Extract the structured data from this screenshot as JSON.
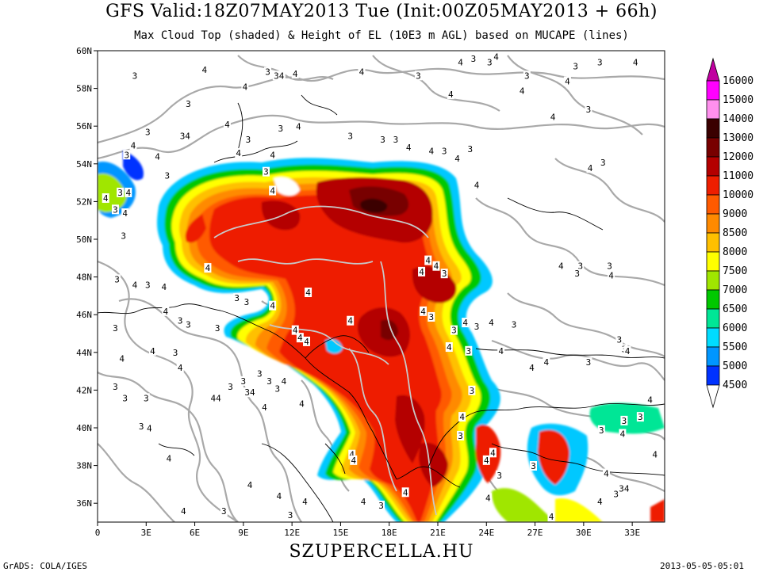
{
  "header": {
    "title": "GFS Valid:18Z07MAY2013 Tue (Init:00Z05MAY2013 + 66h)",
    "subtitle": "Max Cloud Top (shaded) & Height of EL (10E3 m AGL) based on MUCAPE (lines)"
  },
  "footer": {
    "site": "SZUPERCELLA.HU",
    "credit": "GrADS: COLA/IGES",
    "timestamp": "2013-05-05-05:01"
  },
  "axes": {
    "lat_labels": [
      "60N",
      "58N",
      "56N",
      "54N",
      "52N",
      "50N",
      "48N",
      "46N",
      "44N",
      "42N",
      "40N",
      "38N",
      "36N"
    ],
    "lon_labels": [
      "0",
      "3E",
      "6E",
      "9E",
      "12E",
      "15E",
      "18E",
      "21E",
      "24E",
      "27E",
      "30E",
      "33E"
    ]
  },
  "colorbar": {
    "levels": [
      {
        "label": "16000",
        "color": "#c000a0"
      },
      {
        "label": "15000",
        "color": "#ff00ff"
      },
      {
        "label": "14000",
        "color": "#ff90ee"
      },
      {
        "label": "13000",
        "color": "#3a0000"
      },
      {
        "label": "12000",
        "color": "#780000"
      },
      {
        "label": "11000",
        "color": "#b40000"
      },
      {
        "label": "10000",
        "color": "#ee1e00"
      },
      {
        "label": "9000",
        "color": "#ff5a00"
      },
      {
        "label": "8500",
        "color": "#ff8a00"
      },
      {
        "label": "8000",
        "color": "#ffc000"
      },
      {
        "label": "7500",
        "color": "#ffff00"
      },
      {
        "label": "7000",
        "color": "#a0e600"
      },
      {
        "label": "6500",
        "color": "#00c800"
      },
      {
        "label": "6000",
        "color": "#00e696"
      },
      {
        "label": "5500",
        "color": "#00dcff"
      },
      {
        "label": "5000",
        "color": "#0096ff"
      },
      {
        "label": "4500",
        "color": "#0032ff"
      }
    ],
    "bottom_color": "#ffffff"
  },
  "contour_labels": [
    {
      "text": "3",
      "lon": 2.3,
      "lat": 58.6
    },
    {
      "text": "4",
      "lon": 6.6,
      "lat": 58.9
    },
    {
      "text": "3",
      "lon": 10.5,
      "lat": 58.8
    },
    {
      "text": "34",
      "lon": 11.2,
      "lat": 58.6
    },
    {
      "text": "4",
      "lon": 12.2,
      "lat": 58.7
    },
    {
      "text": "4",
      "lon": 16.3,
      "lat": 58.8
    },
    {
      "text": "3",
      "lon": 19.8,
      "lat": 58.6
    },
    {
      "text": "4",
      "lon": 22.4,
      "lat": 59.3
    },
    {
      "text": "3",
      "lon": 23.2,
      "lat": 59.5
    },
    {
      "text": "3",
      "lon": 24.2,
      "lat": 59.3
    },
    {
      "text": "4",
      "lon": 24.6,
      "lat": 59.6
    },
    {
      "text": "3",
      "lon": 26.5,
      "lat": 58.6
    },
    {
      "text": "3",
      "lon": 29.5,
      "lat": 59.1
    },
    {
      "text": "3",
      "lon": 31.0,
      "lat": 59.3
    },
    {
      "text": "4",
      "lon": 33.2,
      "lat": 59.3
    },
    {
      "text": "4",
      "lon": 29.0,
      "lat": 58.3
    },
    {
      "text": "4",
      "lon": 26.2,
      "lat": 57.8
    },
    {
      "text": "4",
      "lon": 21.8,
      "lat": 57.6
    },
    {
      "text": "4",
      "lon": 9.1,
      "lat": 58.0
    },
    {
      "text": "3",
      "lon": 5.6,
      "lat": 57.1
    },
    {
      "text": "3",
      "lon": 3.1,
      "lat": 55.6
    },
    {
      "text": "34",
      "lon": 5.4,
      "lat": 55.4
    },
    {
      "text": "4",
      "lon": 8.0,
      "lat": 56.0
    },
    {
      "text": "3",
      "lon": 9.3,
      "lat": 55.2
    },
    {
      "text": "4",
      "lon": 2.2,
      "lat": 54.9
    },
    {
      "text": "3",
      "lon": 1.8,
      "lat": 54.4
    },
    {
      "text": "4",
      "lon": 3.7,
      "lat": 54.3
    },
    {
      "text": "4",
      "lon": 8.7,
      "lat": 54.5
    },
    {
      "text": "4",
      "lon": 10.8,
      "lat": 54.4
    },
    {
      "text": "3",
      "lon": 11.3,
      "lat": 55.8
    },
    {
      "text": "4",
      "lon": 12.4,
      "lat": 55.9
    },
    {
      "text": "3",
      "lon": 15.6,
      "lat": 55.4
    },
    {
      "text": "3",
      "lon": 17.6,
      "lat": 55.2
    },
    {
      "text": "3",
      "lon": 18.4,
      "lat": 55.2
    },
    {
      "text": "4",
      "lon": 19.2,
      "lat": 54.8
    },
    {
      "text": "4",
      "lon": 20.6,
      "lat": 54.6
    },
    {
      "text": "3",
      "lon": 21.4,
      "lat": 54.6
    },
    {
      "text": "3",
      "lon": 23.0,
      "lat": 54.7
    },
    {
      "text": "4",
      "lon": 22.2,
      "lat": 54.2
    },
    {
      "text": "4",
      "lon": 28.1,
      "lat": 56.4
    },
    {
      "text": "3",
      "lon": 30.3,
      "lat": 56.8
    },
    {
      "text": "4",
      "lon": 30.4,
      "lat": 53.7
    },
    {
      "text": "3",
      "lon": 31.2,
      "lat": 54.0
    },
    {
      "text": "3",
      "lon": 4.3,
      "lat": 53.3
    },
    {
      "text": "3",
      "lon": 10.4,
      "lat": 53.5
    },
    {
      "text": "4",
      "lon": 0.5,
      "lat": 52.1
    },
    {
      "text": "3",
      "lon": 1.4,
      "lat": 52.4
    },
    {
      "text": "4",
      "lon": 1.9,
      "lat": 52.4
    },
    {
      "text": "3",
      "lon": 1.1,
      "lat": 51.5
    },
    {
      "text": "4",
      "lon": 1.7,
      "lat": 51.3
    },
    {
      "text": "4",
      "lon": 10.8,
      "lat": 52.5
    },
    {
      "text": "4",
      "lon": 23.4,
      "lat": 52.8
    },
    {
      "text": "3",
      "lon": 1.6,
      "lat": 50.1
    },
    {
      "text": "4",
      "lon": 6.8,
      "lat": 48.4
    },
    {
      "text": "3",
      "lon": 1.2,
      "lat": 47.8
    },
    {
      "text": "4",
      "lon": 2.3,
      "lat": 47.5
    },
    {
      "text": "3",
      "lon": 3.1,
      "lat": 47.5
    },
    {
      "text": "4",
      "lon": 4.1,
      "lat": 47.4
    },
    {
      "text": "3",
      "lon": 8.6,
      "lat": 46.8
    },
    {
      "text": "3",
      "lon": 9.2,
      "lat": 46.6
    },
    {
      "text": "4",
      "lon": 10.8,
      "lat": 46.4
    },
    {
      "text": "4",
      "lon": 13.0,
      "lat": 47.1
    },
    {
      "text": "4",
      "lon": 20.4,
      "lat": 48.8
    },
    {
      "text": "4",
      "lon": 20.9,
      "lat": 48.5
    },
    {
      "text": "3",
      "lon": 21.4,
      "lat": 48.1
    },
    {
      "text": "4",
      "lon": 20.0,
      "lat": 48.2
    },
    {
      "text": "4",
      "lon": 28.6,
      "lat": 48.5
    },
    {
      "text": "3",
      "lon": 29.8,
      "lat": 48.5
    },
    {
      "text": "3",
      "lon": 29.6,
      "lat": 48.1
    },
    {
      "text": "3",
      "lon": 31.6,
      "lat": 48.5
    },
    {
      "text": "4",
      "lon": 31.7,
      "lat": 48.0
    },
    {
      "text": "4",
      "lon": 4.2,
      "lat": 46.1
    },
    {
      "text": "3",
      "lon": 5.1,
      "lat": 45.6
    },
    {
      "text": "3",
      "lon": 5.6,
      "lat": 45.4
    },
    {
      "text": "3",
      "lon": 1.1,
      "lat": 45.2
    },
    {
      "text": "3",
      "lon": 7.4,
      "lat": 45.2
    },
    {
      "text": "4",
      "lon": 12.2,
      "lat": 45.1
    },
    {
      "text": "4",
      "lon": 12.5,
      "lat": 44.7
    },
    {
      "text": "4",
      "lon": 12.9,
      "lat": 44.5
    },
    {
      "text": "4",
      "lon": 15.6,
      "lat": 45.6
    },
    {
      "text": "4",
      "lon": 20.1,
      "lat": 46.1
    },
    {
      "text": "3",
      "lon": 20.6,
      "lat": 45.8
    },
    {
      "text": "3",
      "lon": 22.0,
      "lat": 45.1
    },
    {
      "text": "4",
      "lon": 22.7,
      "lat": 45.5
    },
    {
      "text": "3",
      "lon": 23.4,
      "lat": 45.3
    },
    {
      "text": "4",
      "lon": 24.3,
      "lat": 45.5
    },
    {
      "text": "3",
      "lon": 25.7,
      "lat": 45.4
    },
    {
      "text": "4",
      "lon": 3.4,
      "lat": 44.0
    },
    {
      "text": "3",
      "lon": 4.8,
      "lat": 43.9
    },
    {
      "text": "4",
      "lon": 5.1,
      "lat": 43.1
    },
    {
      "text": "4",
      "lon": 1.5,
      "lat": 43.6
    },
    {
      "text": "4",
      "lon": 21.7,
      "lat": 44.2
    },
    {
      "text": "3",
      "lon": 22.9,
      "lat": 44.0
    },
    {
      "text": "4",
      "lon": 24.9,
      "lat": 44.0
    },
    {
      "text": "4",
      "lon": 27.7,
      "lat": 43.4
    },
    {
      "text": "4",
      "lon": 26.8,
      "lat": 43.1
    },
    {
      "text": "3",
      "lon": 32.2,
      "lat": 44.6
    },
    {
      "text": "3",
      "lon": 32.5,
      "lat": 44.1
    },
    {
      "text": "4",
      "lon": 32.7,
      "lat": 44.0
    },
    {
      "text": "3",
      "lon": 30.3,
      "lat": 43.4
    },
    {
      "text": "3",
      "lon": 9.0,
      "lat": 42.4
    },
    {
      "text": "3",
      "lon": 8.2,
      "lat": 42.1
    },
    {
      "text": "34",
      "lon": 9.4,
      "lat": 41.8
    },
    {
      "text": "44",
      "lon": 7.3,
      "lat": 41.5
    },
    {
      "text": "3",
      "lon": 10.0,
      "lat": 42.8
    },
    {
      "text": "3",
      "lon": 10.6,
      "lat": 42.4
    },
    {
      "text": "4",
      "lon": 11.5,
      "lat": 42.4
    },
    {
      "text": "3",
      "lon": 11.1,
      "lat": 42.0
    },
    {
      "text": "3",
      "lon": 1.1,
      "lat": 42.1
    },
    {
      "text": "3",
      "lon": 1.7,
      "lat": 41.5
    },
    {
      "text": "3",
      "lon": 3.0,
      "lat": 41.5
    },
    {
      "text": "4",
      "lon": 10.3,
      "lat": 41.0
    },
    {
      "text": "4",
      "lon": 12.6,
      "lat": 41.2
    },
    {
      "text": "3",
      "lon": 2.7,
      "lat": 40.0
    },
    {
      "text": "4",
      "lon": 3.2,
      "lat": 39.9
    },
    {
      "text": "4",
      "lon": 4.4,
      "lat": 38.3
    },
    {
      "text": "4",
      "lon": 5.3,
      "lat": 35.5
    },
    {
      "text": "3",
      "lon": 7.8,
      "lat": 35.5
    },
    {
      "text": "4",
      "lon": 9.4,
      "lat": 36.9
    },
    {
      "text": "4",
      "lon": 11.2,
      "lat": 36.3
    },
    {
      "text": "3",
      "lon": 11.9,
      "lat": 35.3
    },
    {
      "text": "4",
      "lon": 12.8,
      "lat": 36.0
    },
    {
      "text": "4",
      "lon": 15.7,
      "lat": 38.5
    },
    {
      "text": "4",
      "lon": 15.8,
      "lat": 38.2
    },
    {
      "text": "4",
      "lon": 16.4,
      "lat": 36.0
    },
    {
      "text": "3",
      "lon": 17.5,
      "lat": 35.8
    },
    {
      "text": "4",
      "lon": 19.0,
      "lat": 36.5
    },
    {
      "text": "4",
      "lon": 22.5,
      "lat": 40.5
    },
    {
      "text": "3",
      "lon": 23.1,
      "lat": 41.9
    },
    {
      "text": "3",
      "lon": 22.4,
      "lat": 39.5
    },
    {
      "text": "4",
      "lon": 24.4,
      "lat": 38.6
    },
    {
      "text": "4",
      "lon": 24.0,
      "lat": 38.2
    },
    {
      "text": "3",
      "lon": 24.8,
      "lat": 37.4
    },
    {
      "text": "3",
      "lon": 26.9,
      "lat": 37.9
    },
    {
      "text": "4",
      "lon": 31.4,
      "lat": 37.5
    },
    {
      "text": "3",
      "lon": 32.0,
      "lat": 36.4
    },
    {
      "text": "34",
      "lon": 32.5,
      "lat": 36.7
    },
    {
      "text": "4",
      "lon": 31.0,
      "lat": 36.0
    },
    {
      "text": "4",
      "lon": 28.0,
      "lat": 35.2
    },
    {
      "text": "3",
      "lon": 32.5,
      "lat": 40.3
    },
    {
      "text": "3",
      "lon": 31.1,
      "lat": 39.8
    },
    {
      "text": "4",
      "lon": 32.4,
      "lat": 39.6
    },
    {
      "text": "3",
      "lon": 33.5,
      "lat": 40.5
    },
    {
      "text": "4",
      "lon": 34.1,
      "lat": 41.4
    },
    {
      "text": "4",
      "lon": 34.4,
      "lat": 38.5
    },
    {
      "text": "4",
      "lon": 24.1,
      "lat": 36.2
    }
  ]
}
